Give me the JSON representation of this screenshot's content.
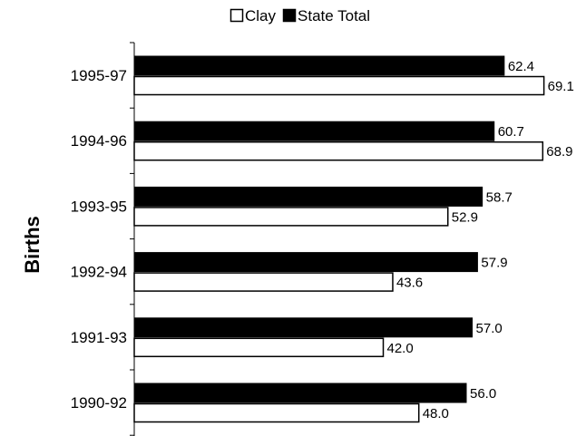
{
  "chart_data": {
    "type": "bar",
    "orientation": "horizontal",
    "categories": [
      "1995-97",
      "1994-96",
      "1993-95",
      "1992-94",
      "1991-93",
      "1990-92"
    ],
    "series": [
      {
        "name": "Clay",
        "values": [
          69.1,
          68.9,
          52.9,
          43.6,
          42.0,
          48.0
        ],
        "color": "#ffffff"
      },
      {
        "name": "State Total",
        "values": [
          62.4,
          60.7,
          58.7,
          57.9,
          57.0,
          56.0
        ],
        "color": "#000000"
      }
    ],
    "value_labels": {
      "Clay": [
        "69.1",
        "68.9",
        "52.9",
        "43.6",
        "42.0",
        "48.0"
      ],
      "State Total": [
        "62.4",
        "60.7",
        "58.7",
        "57.9",
        "57.0",
        "56.0"
      ]
    },
    "title": "",
    "xlabel": "",
    "ylabel": "Births",
    "xlim": [
      0,
      70
    ],
    "grid": false,
    "legend_position": "top-center"
  }
}
